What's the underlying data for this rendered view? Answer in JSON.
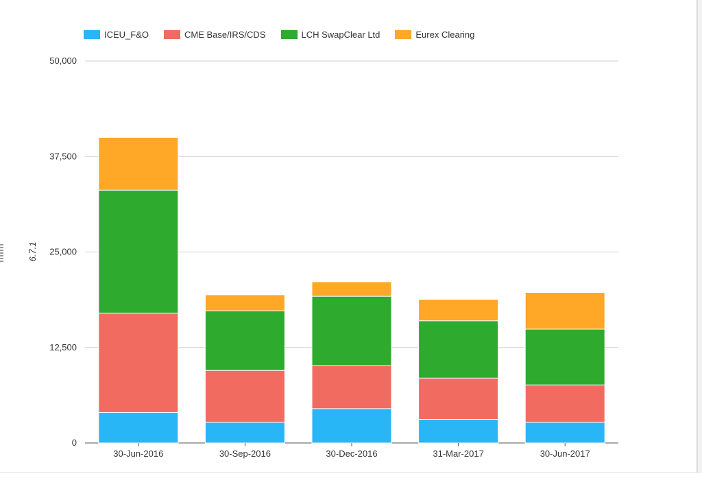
{
  "chart_data": {
    "type": "bar",
    "stacked": true,
    "title": "",
    "xlabel": "",
    "ylabel": "6.7.1",
    "ylim": [
      0,
      50000
    ],
    "yticks": [
      "0",
      "12,500",
      "25,000",
      "37,500",
      "50,000"
    ],
    "ytick_values": [
      0,
      12500,
      25000,
      37500,
      50000
    ],
    "grid": true,
    "legend_position": "top-left",
    "categories": [
      "30-Jun-2016",
      "30-Sep-2016",
      "30-Dec-2016",
      "31-Mar-2017",
      "30-Jun-2017"
    ],
    "series": [
      {
        "name": "ICEU_F&O",
        "color": "#29b6f6",
        "values": [
          4000,
          2700,
          4500,
          3100,
          2700
        ]
      },
      {
        "name": "CME Base/IRS/CDS",
        "color": "#f26b60",
        "values": [
          13000,
          6800,
          5600,
          5400,
          4900
        ]
      },
      {
        "name": "LCH SwapClear Ltd",
        "color": "#2eaa2e",
        "values": [
          16100,
          7800,
          9100,
          7500,
          7300
        ]
      },
      {
        "name": "Eurex Clearing",
        "color": "#ffa726",
        "values": [
          6900,
          2100,
          1900,
          2800,
          4800
        ]
      }
    ]
  }
}
